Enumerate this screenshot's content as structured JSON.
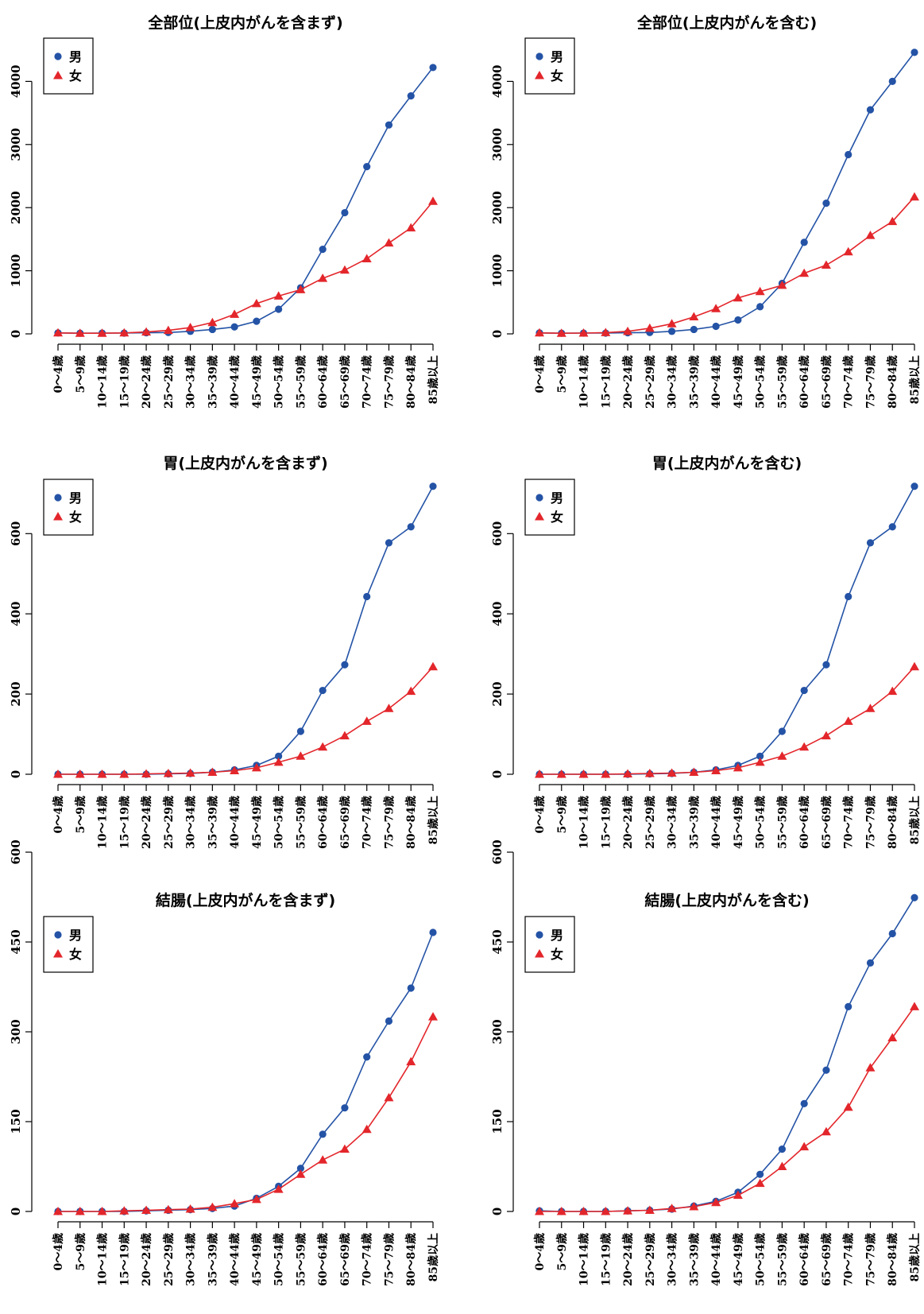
{
  "legend_labels": [
    "男",
    "女"
  ],
  "colors": {
    "male": "#2453a6",
    "female": "#e3262b",
    "axis": "#000000"
  },
  "chart_data": [
    {
      "type": "line",
      "title": "全部位(上皮内がんを含まず)",
      "x": [
        "0～4歳",
        "5～9歳",
        "10～14歳",
        "15～19歳",
        "20～24歳",
        "25～29歳",
        "30～34歳",
        "35～39歳",
        "40～44歳",
        "45～49歳",
        "50～54歳",
        "55～59歳",
        "60～64歳",
        "65～69歳",
        "70～74歳",
        "75～79歳",
        "80～84歳",
        "85歳以上"
      ],
      "ylim": [
        0,
        4300
      ],
      "yticks": [
        0,
        1000,
        2000,
        3000,
        4000
      ],
      "legend": "top-left",
      "series": [
        {
          "name": "男",
          "values": [
            15,
            10,
            12,
            12,
            18,
            22,
            40,
            70,
            110,
            200,
            390,
            730,
            1340,
            1920,
            2650,
            3310,
            3770,
            4220
          ]
        },
        {
          "name": "女",
          "values": [
            15,
            10,
            10,
            15,
            30,
            55,
            100,
            180,
            310,
            480,
            600,
            700,
            880,
            1010,
            1190,
            1440,
            1680,
            2100
          ]
        }
      ]
    },
    {
      "type": "line",
      "title": "全部位(上皮内がんを含む)",
      "x": [
        "0～4歳",
        "5～9歳",
        "10～14歳",
        "15～19歳",
        "20～24歳",
        "25～29歳",
        "30～34歳",
        "35～39歳",
        "40～44歳",
        "45～49歳",
        "50～54歳",
        "55～59歳",
        "60～64歳",
        "65～69歳",
        "70～74歳",
        "75～79歳",
        "80～84歳",
        "85歳以上"
      ],
      "ylim": [
        0,
        4600
      ],
      "yticks": [
        0,
        1000,
        2000,
        3000,
        4000
      ],
      "legend": "top-left",
      "series": [
        {
          "name": "男",
          "values": [
            15,
            10,
            12,
            12,
            18,
            22,
            40,
            70,
            120,
            220,
            430,
            800,
            1450,
            2070,
            2840,
            3550,
            4000,
            4460
          ]
        },
        {
          "name": "女",
          "values": [
            15,
            10,
            12,
            20,
            40,
            90,
            160,
            270,
            400,
            570,
            670,
            770,
            960,
            1090,
            1300,
            1560,
            1780,
            2170
          ]
        }
      ]
    },
    {
      "type": "line",
      "title": "胃(上皮内がんを含まず)",
      "x": [
        "0～4歳",
        "5～9歳",
        "10～14歳",
        "15～19歳",
        "20～24歳",
        "25～29歳",
        "30～34歳",
        "35～39歳",
        "40～44歳",
        "45～49歳",
        "50～54歳",
        "55～59歳",
        "60～64歳",
        "65～69歳",
        "70～74歳",
        "75～79歳",
        "80～84歳",
        "85歳以上"
      ],
      "ylim": [
        0,
        720
      ],
      "yticks": [
        0,
        200,
        400,
        600
      ],
      "legend": "top-left",
      "series": [
        {
          "name": "男",
          "values": [
            0,
            0,
            0,
            0,
            0,
            1,
            2,
            5,
            11,
            22,
            45,
            107,
            209,
            273,
            443,
            577,
            617,
            718
          ]
        },
        {
          "name": "女",
          "values": [
            0,
            0,
            0,
            0,
            1,
            2,
            3,
            5,
            9,
            16,
            30,
            45,
            68,
            96,
            132,
            164,
            207,
            268
          ]
        }
      ]
    },
    {
      "type": "line",
      "title": "胃(上皮内がんを含む)",
      "x": [
        "0～4歳",
        "5～9歳",
        "10～14歳",
        "15～19歳",
        "20～24歳",
        "25～29歳",
        "30～34歳",
        "35～39歳",
        "40～44歳",
        "45～49歳",
        "50～54歳",
        "55～59歳",
        "60～64歳",
        "65～69歳",
        "70～74歳",
        "75～79歳",
        "80～84歳",
        "85歳以上"
      ],
      "ylim": [
        0,
        720
      ],
      "yticks": [
        0,
        200,
        400,
        600
      ],
      "legend": "top-left",
      "series": [
        {
          "name": "男",
          "values": [
            0,
            0,
            0,
            0,
            0,
            1,
            2,
            5,
            11,
            22,
            45,
            107,
            209,
            273,
            443,
            577,
            617,
            718
          ]
        },
        {
          "name": "女",
          "values": [
            0,
            0,
            0,
            0,
            1,
            2,
            3,
            5,
            9,
            16,
            30,
            45,
            68,
            96,
            132,
            164,
            207,
            268
          ]
        }
      ]
    },
    {
      "type": "line",
      "title": "結腸(上皮内がんを含まず)",
      "x": [
        "0～4歳",
        "5～9歳",
        "10～14歳",
        "15～19歳",
        "20～24歳",
        "25～29歳",
        "30～34歳",
        "35～39歳",
        "40～44歳",
        "45～49歳",
        "50～54歳",
        "55～59歳",
        "60～64歳",
        "65～69歳",
        "70～74歳",
        "75～79歳",
        "80～84歳",
        "85歳以上"
      ],
      "ylim": [
        0,
        620
      ],
      "yticks": [
        0,
        150,
        300,
        450,
        600
      ],
      "legend": "top-left",
      "series": [
        {
          "name": "男",
          "values": [
            0,
            0,
            0,
            0,
            1,
            2,
            3,
            5,
            9,
            22,
            42,
            72,
            129,
            173,
            258,
            318,
            373,
            466
          ]
        },
        {
          "name": "女",
          "values": [
            0,
            0,
            0,
            1,
            2,
            3,
            4,
            7,
            13,
            20,
            37,
            62,
            86,
            104,
            137,
            190,
            250,
            325
          ]
        }
      ]
    },
    {
      "type": "line",
      "title": "結腸(上皮内がんを含む)",
      "x": [
        "0～4歳",
        "5～9歳",
        "10～14歳",
        "15～19歳",
        "20～24歳",
        "25～29歳",
        "30～34歳",
        "35～39歳",
        "40～44歳",
        "45～49歳",
        "50～54歳",
        "55～59歳",
        "60～64歳",
        "65～69歳",
        "70～74歳",
        "75～79歳",
        "80～84歳",
        "85歳以上"
      ],
      "ylim": [
        0,
        620
      ],
      "yticks": [
        0,
        150,
        300,
        450,
        600
      ],
      "legend": "top-left",
      "series": [
        {
          "name": "男",
          "values": [
            1,
            0,
            0,
            0,
            1,
            2,
            4,
            9,
            17,
            32,
            62,
            104,
            180,
            236,
            342,
            415,
            464,
            524
          ]
        },
        {
          "name": "女",
          "values": [
            0,
            0,
            0,
            0,
            1,
            2,
            5,
            8,
            15,
            27,
            47,
            75,
            108,
            133,
            174,
            240,
            290,
            342
          ]
        }
      ]
    }
  ]
}
